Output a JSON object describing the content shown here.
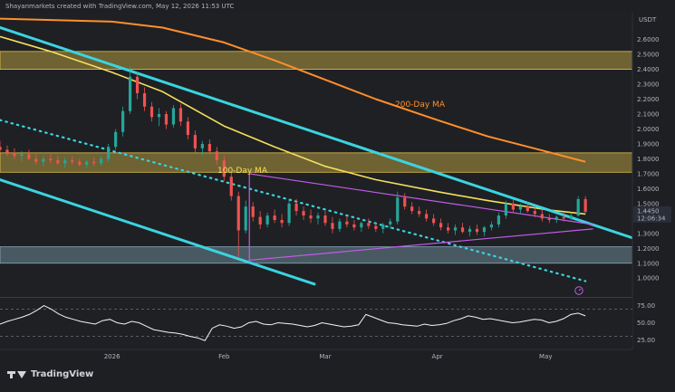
{
  "header": {
    "text": "Shayanmarkets created with TradingView.com, May 12, 2026 11:53 UTC"
  },
  "footer": {
    "brand": "TradingView"
  },
  "chart_data": [
    {
      "type": "candlestick",
      "currency": "USDT",
      "x_axis": {
        "start": "2025-12-01",
        "end": "2026-05-25",
        "ticks": [
          {
            "label": "2026",
            "date": "2026-01-01"
          },
          {
            "label": "Feb",
            "date": "2026-02-01"
          },
          {
            "label": "Mar",
            "date": "2026-03-01"
          },
          {
            "label": "Apr",
            "date": "2026-04-01"
          },
          {
            "label": "May",
            "date": "2026-05-01"
          }
        ]
      },
      "y_axis": {
        "range": [
          0.88,
          2.78
        ],
        "ticks": [
          "2.6000",
          "2.5000",
          "2.4000",
          "2.3000",
          "2.2000",
          "2.1000",
          "2.0000",
          "1.9000",
          "1.8000",
          "1.7000",
          "1.6000",
          "1.5000",
          "1.4000",
          "1.3000",
          "1.2000",
          "1.1000",
          "1.0000"
        ]
      },
      "last_price": {
        "label": "1.4450",
        "sub_label": "12:06:34",
        "value": 1.445
      },
      "candles": [
        [
          "2025-12-01",
          1.88,
          1.92,
          1.84,
          1.86
        ],
        [
          "2025-12-03",
          1.86,
          1.89,
          1.82,
          1.84
        ],
        [
          "2025-12-05",
          1.84,
          1.87,
          1.8,
          1.82
        ],
        [
          "2025-12-07",
          1.82,
          1.85,
          1.78,
          1.83
        ],
        [
          "2025-12-09",
          1.83,
          1.86,
          1.79,
          1.8
        ],
        [
          "2025-12-11",
          1.8,
          1.83,
          1.76,
          1.78
        ],
        [
          "2025-12-13",
          1.78,
          1.82,
          1.75,
          1.8
        ],
        [
          "2025-12-15",
          1.8,
          1.83,
          1.77,
          1.79
        ],
        [
          "2025-12-17",
          1.79,
          1.82,
          1.76,
          1.77
        ],
        [
          "2025-12-19",
          1.77,
          1.81,
          1.74,
          1.79
        ],
        [
          "2025-12-21",
          1.79,
          1.82,
          1.76,
          1.78
        ],
        [
          "2025-12-23",
          1.78,
          1.8,
          1.75,
          1.76
        ],
        [
          "2025-12-25",
          1.76,
          1.79,
          1.74,
          1.78
        ],
        [
          "2025-12-27",
          1.78,
          1.81,
          1.75,
          1.77
        ],
        [
          "2025-12-29",
          1.77,
          1.82,
          1.75,
          1.8
        ],
        [
          "2025-12-31",
          1.8,
          1.9,
          1.78,
          1.88
        ],
        [
          "2026-01-02",
          1.88,
          2.0,
          1.86,
          1.98
        ],
        [
          "2026-01-04",
          1.98,
          2.15,
          1.95,
          2.12
        ],
        [
          "2026-01-06",
          2.12,
          2.42,
          2.1,
          2.35
        ],
        [
          "2026-01-08",
          2.35,
          2.38,
          2.2,
          2.24
        ],
        [
          "2026-01-10",
          2.24,
          2.28,
          2.12,
          2.15
        ],
        [
          "2026-01-12",
          2.15,
          2.18,
          2.05,
          2.08
        ],
        [
          "2026-01-14",
          2.08,
          2.14,
          2.02,
          2.1
        ],
        [
          "2026-01-16",
          2.1,
          2.12,
          2.0,
          2.03
        ],
        [
          "2026-01-18",
          2.03,
          2.16,
          2.01,
          2.14
        ],
        [
          "2026-01-20",
          2.14,
          2.17,
          2.02,
          2.05
        ],
        [
          "2026-01-22",
          2.05,
          2.08,
          1.93,
          1.96
        ],
        [
          "2026-01-24",
          1.96,
          1.99,
          1.84,
          1.87
        ],
        [
          "2026-01-26",
          1.87,
          1.92,
          1.82,
          1.9
        ],
        [
          "2026-01-28",
          1.9,
          1.93,
          1.83,
          1.85
        ],
        [
          "2026-01-30",
          1.85,
          1.88,
          1.76,
          1.79
        ],
        [
          "2026-02-01",
          1.79,
          1.82,
          1.65,
          1.68
        ],
        [
          "2026-02-03",
          1.68,
          1.71,
          1.52,
          1.55
        ],
        [
          "2026-02-05",
          1.55,
          1.58,
          1.14,
          1.32
        ],
        [
          "2026-02-07",
          1.32,
          1.52,
          1.3,
          1.48
        ],
        [
          "2026-02-09",
          1.48,
          1.51,
          1.38,
          1.41
        ],
        [
          "2026-02-11",
          1.41,
          1.45,
          1.33,
          1.36
        ],
        [
          "2026-02-13",
          1.36,
          1.44,
          1.34,
          1.42
        ],
        [
          "2026-02-15",
          1.42,
          1.46,
          1.37,
          1.39
        ],
        [
          "2026-02-17",
          1.39,
          1.43,
          1.34,
          1.37
        ],
        [
          "2026-02-19",
          1.37,
          1.53,
          1.35,
          1.5
        ],
        [
          "2026-02-21",
          1.5,
          1.53,
          1.42,
          1.45
        ],
        [
          "2026-02-23",
          1.45,
          1.48,
          1.39,
          1.42
        ],
        [
          "2026-02-25",
          1.42,
          1.46,
          1.37,
          1.4
        ],
        [
          "2026-02-27",
          1.4,
          1.44,
          1.36,
          1.42
        ],
        [
          "2026-03-01",
          1.42,
          1.45,
          1.35,
          1.37
        ],
        [
          "2026-03-03",
          1.37,
          1.41,
          1.3,
          1.33
        ],
        [
          "2026-03-05",
          1.33,
          1.4,
          1.31,
          1.38
        ],
        [
          "2026-03-07",
          1.38,
          1.42,
          1.34,
          1.36
        ],
        [
          "2026-03-09",
          1.36,
          1.39,
          1.32,
          1.34
        ],
        [
          "2026-03-11",
          1.34,
          1.38,
          1.31,
          1.37
        ],
        [
          "2026-03-13",
          1.37,
          1.4,
          1.33,
          1.35
        ],
        [
          "2026-03-15",
          1.35,
          1.38,
          1.31,
          1.33
        ],
        [
          "2026-03-17",
          1.33,
          1.37,
          1.3,
          1.36
        ],
        [
          "2026-03-19",
          1.36,
          1.4,
          1.33,
          1.38
        ],
        [
          "2026-03-21",
          1.38,
          1.58,
          1.36,
          1.54
        ],
        [
          "2026-03-23",
          1.54,
          1.57,
          1.46,
          1.48
        ],
        [
          "2026-03-25",
          1.48,
          1.51,
          1.43,
          1.45
        ],
        [
          "2026-03-27",
          1.45,
          1.48,
          1.41,
          1.43
        ],
        [
          "2026-03-29",
          1.43,
          1.46,
          1.38,
          1.4
        ],
        [
          "2026-03-31",
          1.4,
          1.43,
          1.35,
          1.37
        ],
        [
          "2026-04-02",
          1.37,
          1.4,
          1.32,
          1.34
        ],
        [
          "2026-04-04",
          1.34,
          1.37,
          1.3,
          1.32
        ],
        [
          "2026-04-06",
          1.32,
          1.36,
          1.29,
          1.34
        ],
        [
          "2026-04-08",
          1.34,
          1.37,
          1.3,
          1.31
        ],
        [
          "2026-04-10",
          1.31,
          1.35,
          1.28,
          1.33
        ],
        [
          "2026-04-12",
          1.33,
          1.36,
          1.29,
          1.31
        ],
        [
          "2026-04-14",
          1.31,
          1.35,
          1.28,
          1.34
        ],
        [
          "2026-04-16",
          1.34,
          1.38,
          1.32,
          1.36
        ],
        [
          "2026-04-18",
          1.36,
          1.44,
          1.34,
          1.42
        ],
        [
          "2026-04-20",
          1.42,
          1.52,
          1.4,
          1.5
        ],
        [
          "2026-04-22",
          1.5,
          1.53,
          1.44,
          1.46
        ],
        [
          "2026-04-24",
          1.46,
          1.5,
          1.43,
          1.48
        ],
        [
          "2026-04-26",
          1.48,
          1.51,
          1.44,
          1.45
        ],
        [
          "2026-04-28",
          1.45,
          1.48,
          1.41,
          1.43
        ],
        [
          "2026-04-30",
          1.43,
          1.46,
          1.38,
          1.4
        ],
        [
          "2026-05-02",
          1.4,
          1.43,
          1.37,
          1.39
        ],
        [
          "2026-05-04",
          1.39,
          1.42,
          1.37,
          1.41
        ],
        [
          "2026-05-06",
          1.41,
          1.44,
          1.38,
          1.4
        ],
        [
          "2026-05-08",
          1.4,
          1.44,
          1.39,
          1.42
        ],
        [
          "2026-05-10",
          1.42,
          1.55,
          1.41,
          1.53
        ],
        [
          "2026-05-12",
          1.53,
          1.55,
          1.43,
          1.445
        ]
      ],
      "ma100": {
        "label": "100-Day MA",
        "color": "#f5e05a",
        "points": [
          [
            "2025-12-01",
            2.62
          ],
          [
            "2025-12-15",
            2.52
          ],
          [
            "2026-01-01",
            2.38
          ],
          [
            "2026-01-15",
            2.25
          ],
          [
            "2026-02-01",
            2.02
          ],
          [
            "2026-02-15",
            1.88
          ],
          [
            "2026-03-01",
            1.75
          ],
          [
            "2026-03-15",
            1.66
          ],
          [
            "2026-04-01",
            1.58
          ],
          [
            "2026-04-15",
            1.52
          ],
          [
            "2026-05-01",
            1.46
          ],
          [
            "2026-05-12",
            1.43
          ]
        ]
      },
      "ma200": {
        "label": "200-Day MA",
        "color": "#ff8f2b",
        "points": [
          [
            "2025-12-01",
            2.74
          ],
          [
            "2026-01-01",
            2.72
          ],
          [
            "2026-01-15",
            2.68
          ],
          [
            "2026-02-01",
            2.58
          ],
          [
            "2026-02-15",
            2.46
          ],
          [
            "2026-03-01",
            2.33
          ],
          [
            "2026-03-15",
            2.2
          ],
          [
            "2026-04-01",
            2.06
          ],
          [
            "2026-04-15",
            1.95
          ],
          [
            "2026-05-01",
            1.85
          ],
          [
            "2026-05-12",
            1.78
          ]
        ]
      },
      "zones": [
        {
          "low": 2.4,
          "high": 2.52,
          "color": "#f2d04b"
        },
        {
          "low": 1.71,
          "high": 1.84,
          "color": "#f2d04b"
        },
        {
          "low": 1.1,
          "high": 1.21,
          "color": "#8fb8c9"
        }
      ],
      "channel_upper": {
        "color": "#3ad4e0",
        "from": [
          "2025-12-01",
          2.68
        ],
        "to": [
          "2026-05-25",
          1.27
        ]
      },
      "channel_lower": {
        "color": "#3ad4e0",
        "from": [
          "2025-12-01",
          1.66
        ],
        "to": [
          "2026-02-26",
          0.96
        ]
      },
      "channel_mid": {
        "color": "#3ad4e0",
        "from": [
          "2025-12-01",
          2.06
        ],
        "to": [
          "2026-05-12",
          0.98
        ]
      },
      "wedge": {
        "color": "#c45ce8",
        "upper": {
          "from": [
            "2026-02-08",
            1.7
          ],
          "to": [
            "2026-05-14",
            1.36
          ]
        },
        "lower": {
          "from": [
            "2026-02-08",
            1.12
          ],
          "to": [
            "2026-05-14",
            1.33
          ]
        },
        "left_edge": {
          "from": [
            "2026-02-08",
            1.7
          ],
          "to": [
            "2026-02-08",
            1.12
          ]
        }
      }
    },
    {
      "type": "line",
      "indicator": "RSI",
      "y_range": [
        15,
        85
      ],
      "ticks": [
        "75.00",
        "50.00",
        "25.00"
      ],
      "levels": [
        70,
        30
      ],
      "values": [
        48,
        52,
        55,
        58,
        62,
        68,
        75,
        70,
        63,
        58,
        55,
        52,
        50,
        48,
        53,
        55,
        50,
        48,
        52,
        50,
        45,
        40,
        38,
        36,
        35,
        33,
        30,
        28,
        24,
        42,
        47,
        45,
        42,
        44,
        50,
        52,
        48,
        47,
        50,
        49,
        48,
        46,
        44,
        46,
        50,
        48,
        46,
        44,
        45,
        47,
        62,
        58,
        54,
        50,
        49,
        47,
        46,
        45,
        48,
        46,
        47,
        49,
        53,
        56,
        60,
        58,
        55,
        56,
        54,
        52,
        50,
        51,
        53,
        55,
        54,
        50,
        52,
        56,
        62,
        64,
        60
      ],
      "color": "#f4f4f4"
    }
  ]
}
